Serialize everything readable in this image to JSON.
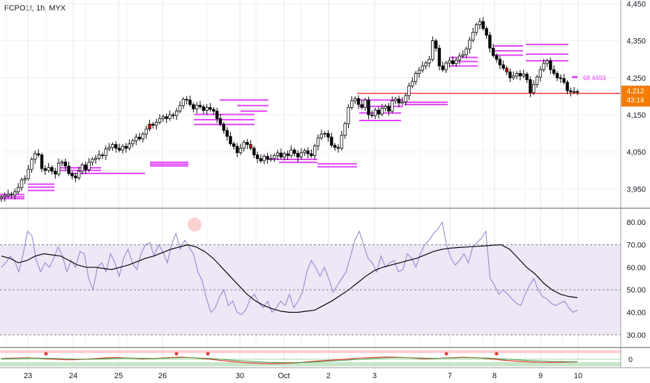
{
  "header": {
    "symbol_line": "FCPO1!, 1h, MYX"
  },
  "colors": {
    "up_fill": "#ffffff",
    "candle_outline": "#000000",
    "down_fill": "#000000",
    "down_red": "#d50000",
    "level_magenta": "#e040fb",
    "price_line": "#f23645",
    "price_badge": "#f57c00",
    "rsi_line": "#9c8fd0",
    "rsi_ma": "#000000",
    "rsi_band": "#ede7f6",
    "grid": "#e6e6e6"
  },
  "price_label": {
    "price": "4,212",
    "countdown": "43:14"
  },
  "floating_label": "68 4493",
  "chart_data": [
    {
      "type": "candlestick",
      "title": "",
      "ylim": [
        3900,
        4460
      ],
      "y_ticks": [
        {
          "value": 4450,
          "label": "4,450"
        },
        {
          "value": 4350,
          "label": "4,350"
        },
        {
          "value": 4250,
          "label": "4,250"
        },
        {
          "value": 4150,
          "label": "4,150"
        },
        {
          "value": 4050,
          "label": "4,050"
        },
        {
          "value": 3950,
          "label": "3,950"
        }
      ],
      "x_ticks": [
        "23",
        "24",
        "25",
        "26",
        "30",
        "Oct",
        "2",
        "3",
        "7",
        "8",
        "9",
        "10"
      ],
      "current_price": 4212,
      "closes": [
        3928,
        3932,
        3936,
        3934,
        3942,
        3954,
        3975,
        3978,
        4003,
        4030,
        4045,
        4042,
        4005,
        4000,
        4008,
        3998,
        3990,
        4020,
        4023,
        4012,
        3992,
        3985,
        3980,
        3998,
        4015,
        4002,
        4022,
        4030,
        4033,
        4042,
        4040,
        4058,
        4062,
        4070,
        4060,
        4055,
        4065,
        4060,
        4072,
        4080,
        4090,
        4085,
        4098,
        4112,
        4125,
        4122,
        4130,
        4140,
        4145,
        4140,
        4150,
        4148,
        4160,
        4175,
        4192,
        4190,
        4178,
        4166,
        4176,
        4172,
        4162,
        4170,
        4165,
        4160,
        4140,
        4125,
        4108,
        4092,
        4072,
        4065,
        4048,
        4060,
        4076,
        4070,
        4060,
        4042,
        4032,
        4026,
        4038,
        4030,
        4032,
        4040,
        4047,
        4036,
        4045,
        4040,
        4055,
        4046,
        4036,
        4048,
        4053,
        4045,
        4040,
        4066,
        4088,
        4098,
        4100,
        4090,
        4068,
        4062,
        4060,
        4095,
        4126,
        4170,
        4188,
        4194,
        4178,
        4170,
        4190,
        4150,
        4148,
        4163,
        4152,
        4168,
        4173,
        4160,
        4188,
        4193,
        4182,
        4185,
        4202,
        4228,
        4240,
        4262,
        4270,
        4282,
        4290,
        4300,
        4350,
        4330,
        4282,
        4272,
        4290,
        4296,
        4288,
        4298,
        4309,
        4312,
        4328,
        4352,
        4373,
        4393,
        4402,
        4383,
        4365,
        4330,
        4310,
        4300,
        4285,
        4276,
        4266,
        4250,
        4255,
        4262,
        4255,
        4260,
        4245,
        4210,
        4232,
        4252,
        4272,
        4289,
        4296,
        4272,
        4262,
        4250,
        4248,
        4238,
        4215,
        4212,
        4213,
        4212
      ]
    },
    {
      "type": "line",
      "title": "",
      "ylim": [
        25,
        85
      ],
      "y_ticks": [
        {
          "value": 80,
          "label": "80.00"
        },
        {
          "value": 70,
          "label": "70.00"
        },
        {
          "value": 60,
          "label": "60.00"
        },
        {
          "value": 50,
          "label": "50.00"
        },
        {
          "value": 40,
          "label": "40.00"
        },
        {
          "value": 30,
          "label": "30.00"
        }
      ],
      "band": [
        30,
        70
      ],
      "mid_line": 50,
      "series": [
        {
          "name": "",
          "values": [
            60.0,
            62.0,
            65.0,
            63.0,
            58.0,
            66.0,
            76.0,
            74.0,
            63.0,
            58.0,
            62.0,
            60.0,
            64.0,
            69.0,
            65.0,
            58.0,
            63.0,
            60.0,
            67.0,
            66.0,
            55.0,
            50.0,
            60.0,
            62.0,
            58.0,
            66.0,
            62.0,
            56.0,
            64.0,
            68.0,
            62.0,
            59.0,
            66.0,
            70.0,
            71.0,
            65.0,
            70.0,
            67.0,
            62.0,
            70.0,
            75.0,
            68.0,
            72.0,
            69.0,
            66.0,
            58.0,
            54.0,
            46.0,
            40.0,
            42.0,
            47.0,
            50.0,
            43.0,
            45.0,
            40.0,
            39.0,
            41.0,
            46.0,
            48.0,
            44.0,
            42.0,
            45.0,
            40.0,
            42.0,
            45.0,
            43.0,
            48.0,
            42.0,
            45.0,
            49.0,
            58.0,
            63.0,
            60.0,
            56.0,
            60.0,
            55.0,
            49.0,
            52.0,
            55.0,
            58.0,
            65.0,
            72.0,
            76.0,
            70.0,
            64.0,
            62.0,
            58.0,
            65.0,
            60.0,
            62.0,
            63.0,
            58.0,
            59.0,
            66.0,
            64.0,
            60.0,
            66.0,
            70.0,
            72.0,
            75.0,
            77.0,
            80.0,
            70.0,
            64.0,
            61.0,
            63.0,
            66.0,
            62.0,
            69.0,
            71.0,
            73.0,
            76.0,
            55.0,
            52.0,
            48.0,
            50.0,
            48.0,
            46.0,
            44.0,
            43.0,
            48.0,
            52.0,
            55.0,
            50.0,
            47.0,
            46.0,
            44.0,
            43.0,
            44.0,
            45.0,
            42.0,
            40.0,
            41.0
          ]
        },
        {
          "name": "",
          "values": [
            65.0,
            64.0,
            62.0,
            63.0,
            65.0,
            66.0,
            65.5,
            65.0,
            63.0,
            61.0,
            60.0,
            60.0,
            59.5,
            59.0,
            60.0,
            61.0,
            62.5,
            64.0,
            65.0,
            66.5,
            68.0,
            69.0,
            70.0,
            69.0,
            67.0,
            64.0,
            60.0,
            56.0,
            52.0,
            48.0,
            45.0,
            43.0,
            41.5,
            40.5,
            40.0,
            40.0,
            40.5,
            41.0,
            43.0,
            45.0,
            47.5,
            50.0,
            53.0,
            56.0,
            58.5,
            60.0,
            61.0,
            62.0,
            63.0,
            64.0,
            65.5,
            67.0,
            68.0,
            68.5,
            68.8,
            69.0,
            69.3,
            69.5,
            69.8,
            70.0,
            68.0,
            64.0,
            60.0,
            57.0,
            53.0,
            50.0,
            48.0,
            47.0,
            46.5
          ]
        }
      ]
    },
    {
      "type": "line",
      "title": "",
      "y_ticks": [
        {
          "value": 0,
          "label": "0"
        }
      ],
      "series": [
        {
          "name": "",
          "values": [
            0.6,
            0.8,
            1.0,
            0.7,
            0.2,
            -0.3,
            -0.2,
            0.3,
            0.9,
            1.2,
            0.8,
            0.4,
            0.6,
            1.1,
            1.4,
            1.0,
            0.3,
            -0.6,
            -1.4,
            -2.1,
            -2.6,
            -2.9,
            -2.7,
            -2.3,
            -1.6,
            -0.9,
            -0.4,
            0.2,
            0.8,
            1.2,
            1.5,
            1.3,
            0.9,
            0.4,
            0.6,
            1.0,
            1.3,
            1.1,
            0.5,
            -0.4,
            -1.1,
            -1.6,
            -1.9,
            -2.0,
            -1.8,
            -1.7
          ]
        },
        {
          "name": "",
          "values": [
            0.4,
            0.5,
            0.7,
            0.8,
            0.6,
            0.3,
            0.1,
            0.1,
            0.4,
            0.7,
            0.8,
            0.7,
            0.6,
            0.8,
            1.0,
            1.0,
            0.7,
            0.1,
            -0.5,
            -1.1,
            -1.6,
            -2.0,
            -2.2,
            -2.2,
            -1.9,
            -1.5,
            -1.0,
            -0.5,
            0.0,
            0.5,
            0.9,
            1.1,
            1.0,
            0.8,
            0.7,
            0.8,
            1.0,
            1.0,
            0.8,
            0.3,
            -0.2,
            -0.7,
            -1.1,
            -1.4,
            -1.5,
            -1.6
          ]
        }
      ]
    }
  ]
}
